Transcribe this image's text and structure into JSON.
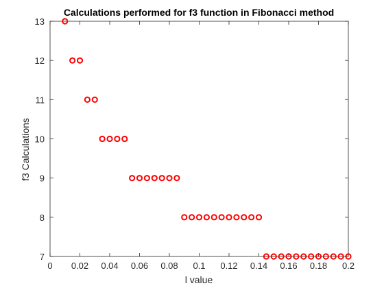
{
  "chart_data": {
    "type": "scatter",
    "title": "Calculations performed for f3 function in Fibonacci method",
    "xlabel": "l value",
    "ylabel": "f3 Calculations",
    "xlim": [
      0,
      0.2
    ],
    "ylim": [
      7,
      13
    ],
    "x_ticks": [
      "0",
      "0.02",
      "0.04",
      "0.06",
      "0.08",
      "0.1",
      "0.12",
      "0.14",
      "0.16",
      "0.18",
      "0.2"
    ],
    "y_ticks": [
      "7",
      "8",
      "9",
      "10",
      "11",
      "12",
      "13"
    ],
    "grid": false,
    "marker": "circle-open",
    "series": [
      {
        "color": "#ff0000",
        "x": [
          0.01,
          0.015,
          0.02,
          0.025,
          0.03,
          0.035,
          0.04,
          0.045,
          0.05,
          0.055,
          0.06,
          0.065,
          0.07,
          0.075,
          0.08,
          0.085,
          0.09,
          0.095,
          0.1,
          0.105,
          0.11,
          0.115,
          0.12,
          0.125,
          0.13,
          0.135,
          0.14,
          0.145,
          0.15,
          0.155,
          0.16,
          0.165,
          0.17,
          0.175,
          0.18,
          0.185,
          0.19,
          0.195,
          0.2
        ],
        "y": [
          13,
          12,
          12,
          11,
          11,
          10,
          10,
          10,
          10,
          9,
          9,
          9,
          9,
          9,
          9,
          9,
          8,
          8,
          8,
          8,
          8,
          8,
          8,
          8,
          8,
          8,
          8,
          7,
          7,
          7,
          7,
          7,
          7,
          7,
          7,
          7,
          7,
          7,
          7
        ]
      }
    ]
  }
}
